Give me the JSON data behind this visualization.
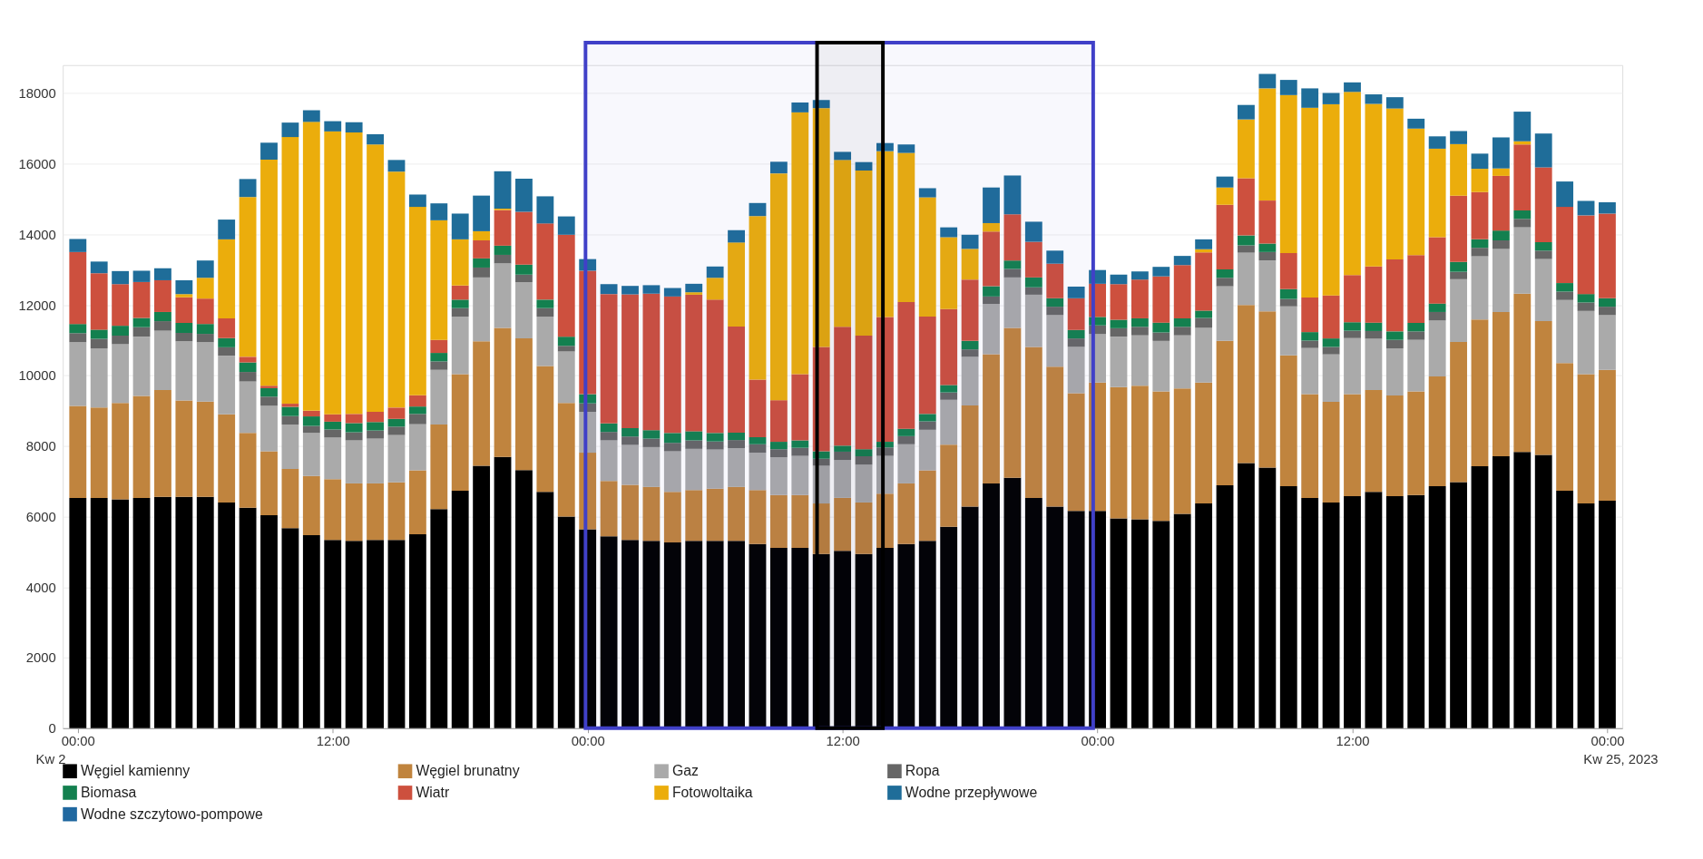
{
  "chart_data": {
    "type": "bar",
    "stacked": true,
    "x": [
      "2023-04-22T00:00",
      "2023-04-22T01:00",
      "2023-04-22T02:00",
      "2023-04-22T03:00",
      "2023-04-22T04:00",
      "2023-04-22T05:00",
      "2023-04-22T06:00",
      "2023-04-22T07:00",
      "2023-04-22T08:00",
      "2023-04-22T09:00",
      "2023-04-22T10:00",
      "2023-04-22T11:00",
      "2023-04-22T12:00",
      "2023-04-22T13:00",
      "2023-04-22T14:00",
      "2023-04-22T15:00",
      "2023-04-22T16:00",
      "2023-04-22T17:00",
      "2023-04-22T18:00",
      "2023-04-22T19:00",
      "2023-04-22T20:00",
      "2023-04-22T21:00",
      "2023-04-22T22:00",
      "2023-04-22T23:00",
      "2023-04-23T00:00",
      "2023-04-23T01:00",
      "2023-04-23T02:00",
      "2023-04-23T03:00",
      "2023-04-23T04:00",
      "2023-04-23T05:00",
      "2023-04-23T06:00",
      "2023-04-23T07:00",
      "2023-04-23T08:00",
      "2023-04-23T09:00",
      "2023-04-23T10:00",
      "2023-04-23T11:00",
      "2023-04-23T12:00",
      "2023-04-23T13:00",
      "2023-04-23T14:00",
      "2023-04-23T15:00",
      "2023-04-23T16:00",
      "2023-04-23T17:00",
      "2023-04-23T18:00",
      "2023-04-23T19:00",
      "2023-04-23T20:00",
      "2023-04-23T21:00",
      "2023-04-23T22:00",
      "2023-04-23T23:00",
      "2023-04-24T00:00",
      "2023-04-24T01:00",
      "2023-04-24T02:00",
      "2023-04-24T03:00",
      "2023-04-24T04:00",
      "2023-04-24T05:00",
      "2023-04-24T06:00",
      "2023-04-24T07:00",
      "2023-04-24T08:00",
      "2023-04-24T09:00",
      "2023-04-24T10:00",
      "2023-04-24T11:00",
      "2023-04-24T12:00",
      "2023-04-24T13:00",
      "2023-04-24T14:00",
      "2023-04-24T15:00",
      "2023-04-24T16:00",
      "2023-04-24T17:00",
      "2023-04-24T18:00",
      "2023-04-24T19:00",
      "2023-04-24T20:00",
      "2023-04-24T21:00",
      "2023-04-24T22:00",
      "2023-04-24T23:00",
      "2023-04-25T00:00"
    ],
    "xlim": [
      "2023-04-21T23:30",
      "2023-04-25T00:30"
    ],
    "xticks": [
      {
        "value": "2023-04-22T00:00",
        "label": "00:00"
      },
      {
        "value": "2023-04-22T12:00",
        "label": "12:00"
      },
      {
        "value": "2023-04-23T00:00",
        "label": "00:00"
      },
      {
        "value": "2023-04-23T12:00",
        "label": "12:00"
      },
      {
        "value": "2023-04-24T00:00",
        "label": "00:00"
      },
      {
        "value": "2023-04-24T12:00",
        "label": "12:00"
      },
      {
        "value": "2023-04-25T00:00",
        "label": "00:00"
      }
    ],
    "ylim": [
      0,
      18800
    ],
    "yticks": [
      0,
      2000,
      4000,
      6000,
      8000,
      10000,
      12000,
      14000,
      16000,
      18000
    ],
    "grid": "y",
    "legend": "bottom",
    "annotations": [
      "Kw 2",
      "Kw 25, 2023"
    ],
    "bands": [
      {
        "axis": "x",
        "from": "2023-04-22T23:54",
        "to": "2023-04-23T23:48",
        "color": "#4040c8"
      },
      {
        "axis": "x",
        "from": "2023-04-23T10:48",
        "to": "2023-04-23T13:54",
        "color": "#000000"
      }
    ],
    "series": [
      {
        "name": "Węgiel kamienny",
        "color": "#000000",
        "values": [
          6530,
          6530,
          6490,
          6530,
          6560,
          6560,
          6560,
          6400,
          6250,
          6040,
          5670,
          5470,
          5340,
          5310,
          5340,
          5340,
          5500,
          6210,
          6730,
          7440,
          7690,
          7320,
          6700,
          6000,
          5640,
          5440,
          5340,
          5310,
          5270,
          5310,
          5310,
          5310,
          5220,
          5110,
          5110,
          4940,
          5030,
          4940,
          5110,
          5220,
          5310,
          5710,
          6280,
          6940,
          7100,
          6530,
          6280,
          6160,
          6160,
          5950,
          5920,
          5880,
          6080,
          6370,
          6890,
          7520,
          7390,
          6860,
          6530,
          6400,
          6580,
          6700,
          6580,
          6610,
          6860,
          6980,
          7430,
          7710,
          7830,
          7750,
          6730,
          6370,
          6450
        ]
      },
      {
        "name": "Węgiel brunatny",
        "color": "#c0843e",
        "values": [
          2610,
          2560,
          2730,
          2890,
          3030,
          2730,
          2700,
          2500,
          2120,
          1810,
          1680,
          1680,
          1720,
          1630,
          1600,
          1630,
          1810,
          2400,
          3310,
          3530,
          3660,
          3730,
          3570,
          3220,
          2170,
          1570,
          1560,
          1530,
          1430,
          1440,
          1480,
          1530,
          1530,
          1500,
          1500,
          1430,
          1500,
          1460,
          1540,
          1720,
          2000,
          2330,
          2870,
          3660,
          4250,
          4280,
          3970,
          3340,
          3640,
          3720,
          3790,
          3670,
          3550,
          3430,
          4090,
          4480,
          4430,
          3710,
          2940,
          2850,
          2890,
          2890,
          2850,
          2940,
          3110,
          3970,
          4160,
          4090,
          4490,
          3790,
          3620,
          3670,
          3710
        ]
      },
      {
        "name": "Gaz",
        "color": "#aaaaaa",
        "values": [
          1800,
          1680,
          1670,
          1680,
          1680,
          1680,
          1680,
          1660,
          1460,
          1290,
          1260,
          1220,
          1180,
          1220,
          1270,
          1340,
          1310,
          1550,
          1630,
          1810,
          1830,
          1600,
          1400,
          1460,
          1160,
          1150,
          1130,
          1130,
          1150,
          1170,
          1110,
          1100,
          1060,
          1070,
          1110,
          1070,
          1070,
          1070,
          1070,
          1110,
          1150,
          1270,
          1380,
          1430,
          1430,
          1480,
          1460,
          1310,
          1380,
          1430,
          1430,
          1430,
          1510,
          1550,
          1550,
          1480,
          1440,
          1390,
          1310,
          1350,
          1590,
          1460,
          1340,
          1460,
          1590,
          1780,
          1790,
          1790,
          1880,
          1760,
          1790,
          1790,
          1550
        ]
      },
      {
        "name": "Ropa",
        "color": "#666666",
        "values": [
          260,
          270,
          240,
          270,
          270,
          240,
          240,
          240,
          270,
          260,
          240,
          200,
          230,
          230,
          230,
          240,
          290,
          240,
          240,
          280,
          240,
          210,
          240,
          160,
          240,
          240,
          240,
          240,
          240,
          240,
          230,
          230,
          240,
          230,
          230,
          200,
          240,
          240,
          240,
          230,
          240,
          210,
          210,
          210,
          240,
          210,
          240,
          240,
          240,
          240,
          240,
          240,
          240,
          280,
          240,
          210,
          240,
          210,
          210,
          210,
          210,
          210,
          240,
          240,
          240,
          210,
          240,
          240,
          240,
          240,
          240,
          240,
          240
        ]
      },
      {
        "name": "Biomasa",
        "color": "#13804f",
        "values": [
          260,
          260,
          280,
          260,
          260,
          280,
          280,
          260,
          270,
          240,
          260,
          270,
          220,
          260,
          240,
          220,
          210,
          240,
          240,
          260,
          260,
          280,
          240,
          260,
          260,
          240,
          240,
          240,
          280,
          260,
          240,
          210,
          200,
          210,
          210,
          210,
          170,
          200,
          160,
          210,
          210,
          210,
          240,
          290,
          240,
          280,
          240,
          240,
          240,
          240,
          240,
          280,
          240,
          210,
          240,
          280,
          240,
          280,
          240,
          240,
          240,
          240,
          240,
          240,
          240,
          280,
          240,
          280,
          240,
          240,
          240,
          240,
          240
        ]
      },
      {
        "name": "Wiatr",
        "color": "#cd503e",
        "values": [
          2040,
          1600,
          1180,
          1020,
          900,
          730,
          720,
          560,
          160,
          70,
          90,
          160,
          210,
          260,
          290,
          320,
          320,
          370,
          400,
          510,
          1010,
          1500,
          2160,
          2890,
          3500,
          3670,
          3790,
          3870,
          3870,
          3870,
          3780,
          3010,
          1630,
          1180,
          1880,
          2960,
          3370,
          3220,
          3540,
          3590,
          2760,
          2150,
          1740,
          1550,
          1310,
          1010,
          980,
          900,
          940,
          1010,
          1100,
          1310,
          1510,
          1650,
          1830,
          1620,
          1220,
          1020,
          980,
          1220,
          1340,
          1590,
          2040,
          1920,
          1880,
          1880,
          1340,
          1550,
          1870,
          2120,
          2160,
          2230,
          2400
        ]
      },
      {
        "name": "Fotowoltaika",
        "color": "#ebad0c",
        "values": [
          0,
          0,
          0,
          0,
          0,
          90,
          590,
          2240,
          4530,
          6410,
          7560,
          8190,
          8020,
          7980,
          7580,
          6690,
          5340,
          3390,
          1310,
          260,
          40,
          0,
          0,
          0,
          0,
          0,
          0,
          0,
          0,
          70,
          620,
          2380,
          4640,
          6430,
          7420,
          6770,
          4730,
          4680,
          4700,
          4230,
          3380,
          2040,
          870,
          240,
          0,
          0,
          0,
          0,
          0,
          0,
          0,
          0,
          0,
          90,
          490,
          1670,
          3180,
          4480,
          5380,
          5420,
          5190,
          4610,
          4280,
          3590,
          2510,
          1460,
          660,
          210,
          90,
          0,
          0,
          0,
          0
        ]
      },
      {
        "name": "Wodne przepływowe",
        "color": "#1f6d99",
        "values": [
          370,
          330,
          370,
          320,
          340,
          390,
          490,
          560,
          510,
          480,
          410,
          330,
          290,
          290,
          290,
          330,
          350,
          480,
          730,
          1010,
          1060,
          940,
          770,
          520,
          330,
          280,
          240,
          240,
          240,
          240,
          320,
          350,
          370,
          330,
          280,
          230,
          230,
          240,
          230,
          240,
          260,
          280,
          400,
          1010,
          1100,
          570,
          370,
          330,
          390,
          270,
          230,
          270,
          260,
          280,
          310,
          410,
          410,
          430,
          550,
          320,
          270,
          270,
          320,
          280,
          350,
          370,
          430,
          880,
          840,
          960,
          720,
          410,
          320
        ]
      },
      {
        "name": "Wodne szczytowo-pompowe",
        "color": "#2068a0",
        "values": [
          0,
          0,
          0,
          0,
          0,
          0,
          0,
          0,
          0,
          0,
          0,
          0,
          0,
          0,
          0,
          0,
          0,
          0,
          0,
          0,
          0,
          0,
          0,
          0,
          0,
          0,
          0,
          0,
          0,
          0,
          0,
          0,
          0,
          0,
          0,
          0,
          0,
          0,
          0,
          0,
          0,
          0,
          0,
          0,
          0,
          0,
          0,
          0,
          0,
          0,
          0,
          0,
          0,
          0,
          0,
          0,
          0,
          0,
          0,
          0,
          0,
          0,
          0,
          0,
          0,
          0,
          0,
          0,
          0,
          0,
          0,
          0,
          0
        ]
      }
    ]
  }
}
